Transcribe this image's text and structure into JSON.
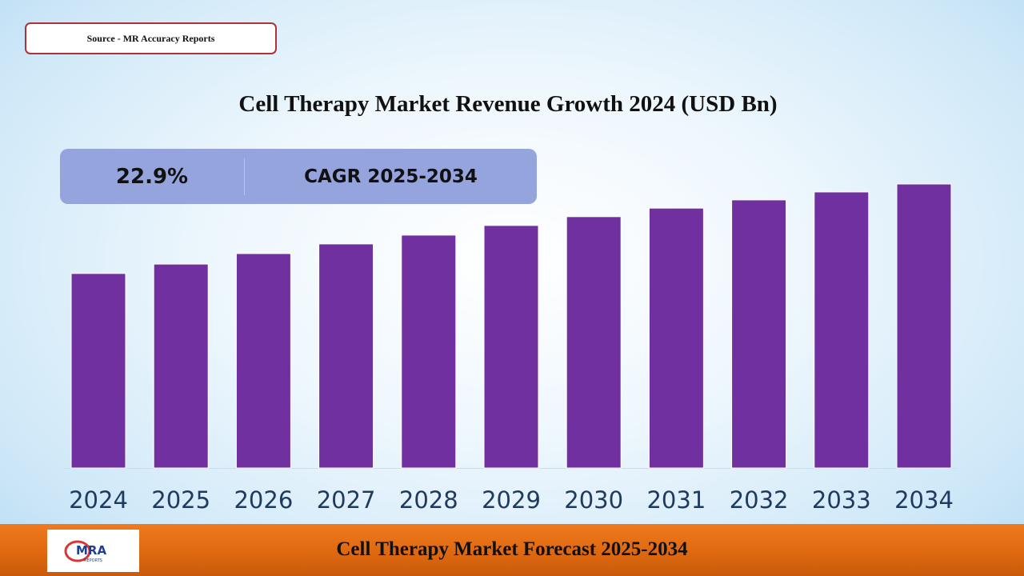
{
  "source": "Source - MR  Accuracy  Reports",
  "cagr": {
    "value": "22.9%",
    "label": "CAGR 2025-2034"
  },
  "footer": {
    "text": "Cell Therapy  Market  Forecast  2025-2034",
    "logo_text": "MRA REPORTS"
  },
  "colors": {
    "bar": "#7030a0",
    "axis_label": "#1f3a5f",
    "footer": "#e46c0a",
    "cagr_box": "#95a4dd"
  },
  "chart_data": {
    "type": "bar",
    "title": "Cell Therapy  Market  Revenue  Growth  2024  (USD Bn)",
    "categories": [
      "2024",
      "2025",
      "2026",
      "2027",
      "2028",
      "2029",
      "2030",
      "2031",
      "2032",
      "2033",
      "2034"
    ],
    "values": [
      68.5,
      71.8,
      75.5,
      78.9,
      82.0,
      85.4,
      88.5,
      91.5,
      94.4,
      97.2,
      100
    ],
    "value_note": "relative bar heights (no y-axis shown), 2034 = 100",
    "ylim": [
      0,
      100
    ],
    "grid": false,
    "legend": "none"
  }
}
